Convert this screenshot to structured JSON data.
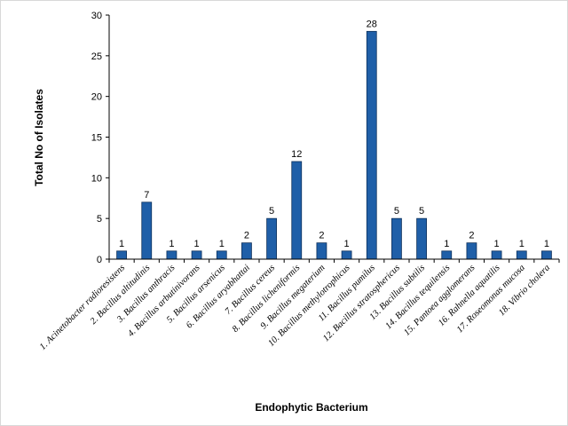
{
  "chart_data": {
    "type": "bar",
    "title": "",
    "xlabel": "Endophytic Bacterium",
    "ylabel": "Total No of Isolates",
    "ylim": [
      0,
      30
    ],
    "yticks": [
      0,
      5,
      10,
      15,
      20,
      25,
      30
    ],
    "grid": false,
    "legend": "none",
    "bar_color": "#1f5fa8",
    "categories": [
      "1. Acinetobacter radioresistens",
      "2. Bacillus altitudinis",
      "3. Bacillus anthracis",
      "4. Bacillus arbutinivorans",
      "5. Bacillus arsenicus",
      "6. Bacillus aryabhattai",
      "7. Bacillus cereus",
      "8. Bacillus licheniformis",
      "9. Bacillus megaterium",
      "10. Bacillus methylotrophicus",
      "11. Bacillus pumilus",
      "12. Bacillus stratosphericus",
      "13. Bacillus subtilis",
      "14. Bacillus tequilensis",
      "15. Pantoea agglomerans",
      "16. Rahnella aquatilis",
      "17. Roseomonas mucosa",
      "18. Vibrio cholera"
    ],
    "values": [
      1,
      7,
      1,
      1,
      1,
      2,
      5,
      12,
      2,
      1,
      28,
      5,
      5,
      1,
      2,
      1,
      1,
      1
    ]
  }
}
